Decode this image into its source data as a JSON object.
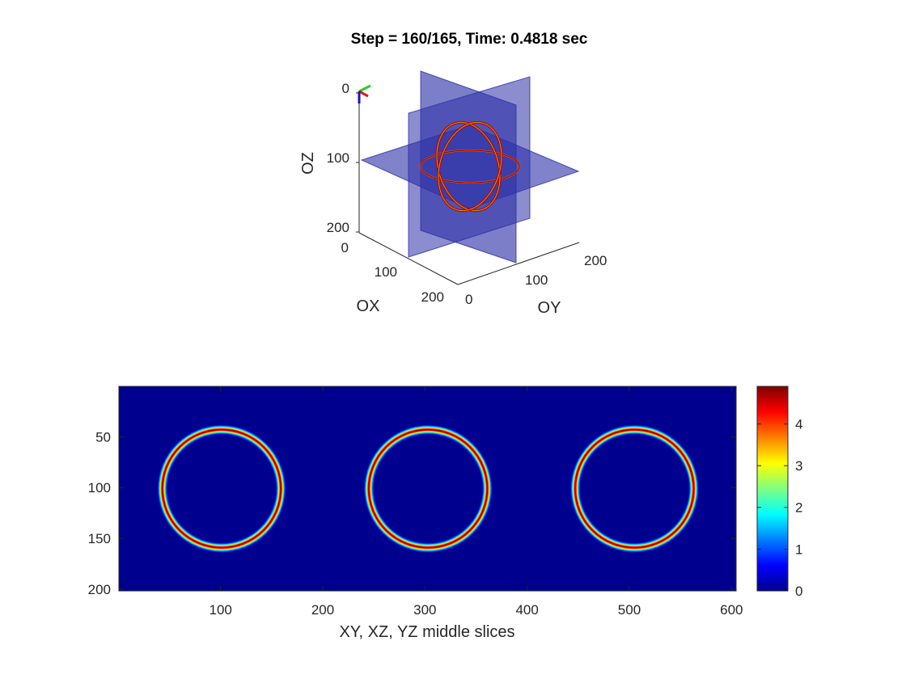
{
  "chart_data": [
    {
      "type": "volume-slices-3d",
      "title": "Step = 160/165, Time: 0.4818 sec",
      "xlabel": "OX",
      "ylabel": "OY",
      "zlabel": "OZ",
      "x_ticks": [
        "0",
        "100",
        "200"
      ],
      "y_ticks": [
        "0",
        "100",
        "200"
      ],
      "z_ticks": [
        "0",
        "100",
        "200"
      ],
      "xlim": [
        0,
        200
      ],
      "ylim": [
        0,
        200
      ],
      "zlim": [
        0,
        200
      ],
      "z_reversed": true,
      "slices": [
        "XY",
        "XZ",
        "YZ"
      ],
      "slice_position": 100,
      "slice_color": "#2b2fa6",
      "ring_color": "#b30000"
    },
    {
      "type": "heatmap",
      "xlabel": "XY, XZ, YZ middle slices",
      "x_ticks": [
        "100",
        "200",
        "300",
        "400",
        "500",
        "600"
      ],
      "x_tick_values": [
        100,
        200,
        300,
        400,
        500,
        600
      ],
      "y_ticks": [
        "50",
        "100",
        "150",
        "200"
      ],
      "y_tick_values": [
        50,
        100,
        150,
        200
      ],
      "xlim": [
        0.5,
        604.5
      ],
      "ylim": [
        0.5,
        201.5
      ],
      "y_reversed": true,
      "rings": [
        {
          "center_x": 101,
          "center_y": 101,
          "radius": 58
        },
        {
          "center_x": 303,
          "center_y": 101,
          "radius": 58
        },
        {
          "center_x": 505,
          "center_y": 101,
          "radius": 58
        }
      ],
      "ring_peak_value": 4.9,
      "colorbar": {
        "colormap": "jet",
        "range": [
          0,
          4.9
        ],
        "ticks": [
          "0",
          "1",
          "2",
          "3",
          "4"
        ],
        "tick_values": [
          0,
          1,
          2,
          3,
          4
        ]
      }
    }
  ]
}
